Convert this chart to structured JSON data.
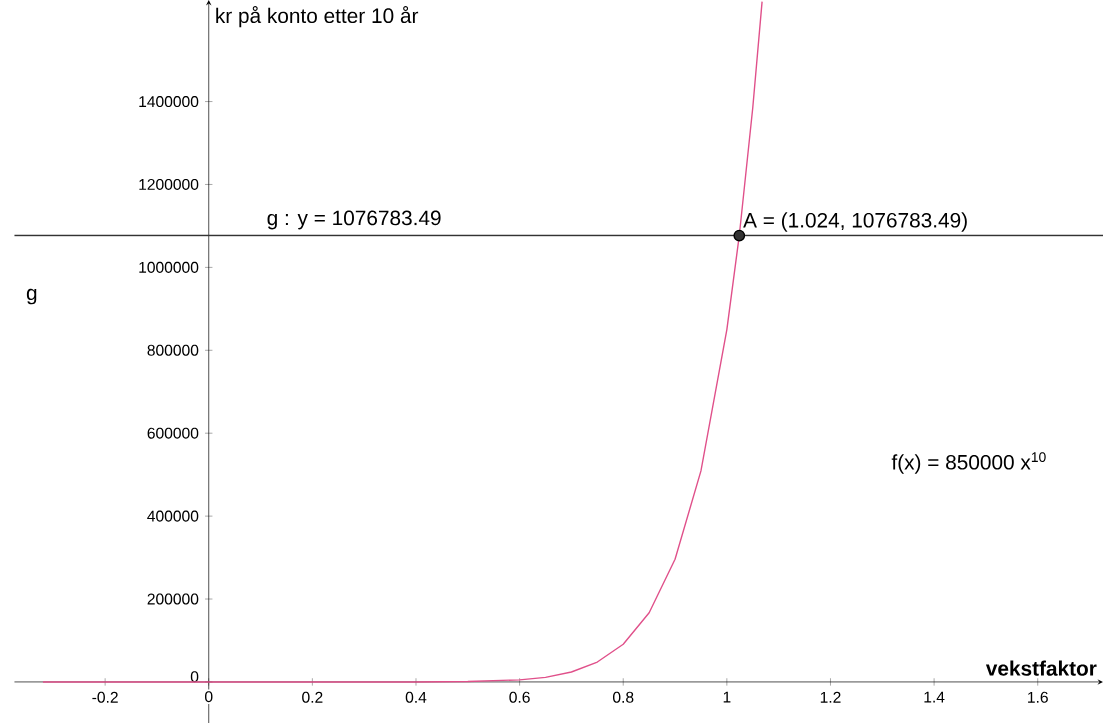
{
  "chart_data": {
    "type": "line",
    "xlabel": "vekstfaktor",
    "ylabel": "kr på konto etter 10 år",
    "xlim": [
      -0.375,
      1.726
    ],
    "ylim": [
      -100000,
      1645000
    ],
    "xticks": [
      -0.2,
      0,
      0.2,
      0.4,
      0.6,
      0.8,
      1,
      1.2,
      1.4,
      1.6
    ],
    "yticks": [
      0,
      200000,
      400000,
      600000,
      800000,
      1000000,
      1200000,
      1400000
    ],
    "series": [
      {
        "color": "#e0508a",
        "marker": "none",
        "line_style": "solid",
        "x": [
          -0.32,
          -0.2,
          0,
          0.2,
          0.4,
          0.5,
          0.6,
          0.65,
          0.7,
          0.75,
          0.8,
          0.85,
          0.9,
          0.95,
          1.0,
          1.024,
          1.05,
          1.068
        ],
        "values": [
          0,
          0,
          0,
          0,
          0,
          1000,
          5000,
          11000,
          24000,
          48000,
          91000,
          167000,
          296000,
          509000,
          850000,
          1077000,
          1385000,
          1641000
        ]
      },
      {
        "type": "scatter",
        "color": "#333333",
        "marker": "circle",
        "x": [
          1.024
        ],
        "values": [
          1076783.49
        ]
      }
    ],
    "ref_lines": [
      {
        "axis": "y",
        "value": 1076783.49,
        "label": "g : y = 1076783.49",
        "color": "#333333"
      }
    ],
    "annotations": [
      {
        "text": "A = (1.024, 1076783.49)",
        "x": 1.024,
        "y": 1076783.49
      },
      "f(x) = 850000 x$^{10}$",
      "g"
    ]
  }
}
